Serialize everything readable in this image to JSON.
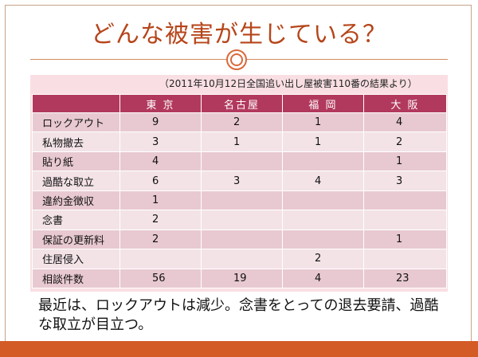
{
  "slide": {
    "title": "どんな被害が生じている？",
    "source_note": "（2011年10月12日全国追い出し屋被害110番の結果より）",
    "summary": "最近は、ロックアウトは減少。念書をとっての退去要請、過酷な取立が目立つ。"
  },
  "table": {
    "columns": [
      "東 京",
      "名古屋",
      "福 岡",
      "大 阪"
    ],
    "rows": [
      {
        "label": "ロックアウト",
        "values": [
          "9",
          "2",
          "1",
          "4"
        ]
      },
      {
        "label": "私物撤去",
        "values": [
          "3",
          "1",
          "1",
          "2"
        ]
      },
      {
        "label": "貼り紙",
        "values": [
          "4",
          "",
          "",
          "1"
        ]
      },
      {
        "label": "過酷な取立",
        "values": [
          "6",
          "3",
          "4",
          "3"
        ]
      },
      {
        "label": "違約金徴収",
        "values": [
          "1",
          "",
          "",
          ""
        ]
      },
      {
        "label": "念書",
        "values": [
          "2",
          "",
          "",
          ""
        ]
      },
      {
        "label": "保証の更新料",
        "values": [
          "2",
          "",
          "",
          "1"
        ]
      },
      {
        "label": "住居侵入",
        "values": [
          "",
          "",
          "2",
          ""
        ]
      },
      {
        "label": "相談件数",
        "values": [
          "56",
          "19",
          "4",
          "23"
        ]
      }
    ]
  },
  "colors": {
    "title": "#b6451a",
    "header_bg": "#b2395e",
    "row_dark": "#e8c9d1",
    "row_light": "#f3e3e7",
    "bottom_bar": "#d35b26"
  }
}
